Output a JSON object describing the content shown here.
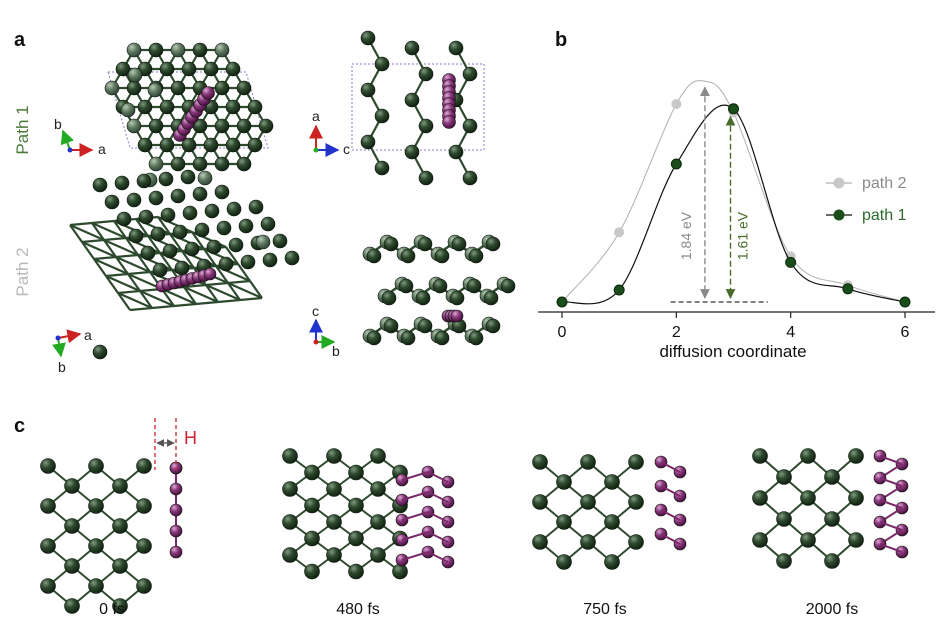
{
  "panels": {
    "a_label": "a",
    "b_label": "b",
    "c_label": "c"
  },
  "panel_a": {
    "row1_label": "Path 1",
    "row2_label": "Path 2",
    "axes": {
      "r1_left": [
        "b",
        "a"
      ],
      "r1_right": [
        "a",
        "c"
      ],
      "r2_left": [
        "a",
        "b"
      ],
      "r2_right": [
        "c",
        "b"
      ]
    }
  },
  "colors": {
    "atom_dark": "#1f3a1f",
    "atom_mid": "#3d5e3d",
    "atom_light": "#6b8a6b",
    "diffusing": "#7a2a6a",
    "path1": "#1a4d1a",
    "path2": "#bdbdbd",
    "barrier1": "#4a6b2a",
    "barrier2": "#8a8a8a",
    "h_marker": "#cc2233"
  },
  "chart_data": {
    "type": "line",
    "title": "",
    "xlabel": "diffusion coordinate",
    "ylabel": "",
    "xlim": [
      -0.3,
      6.5
    ],
    "ylim": [
      -0.1,
      2.1
    ],
    "xticks": [
      0,
      2,
      4,
      6
    ],
    "legend_position": "right",
    "series": [
      {
        "name": "path 2",
        "x": [
          0,
          1,
          2,
          3,
          4,
          5,
          6
        ],
        "values": [
          0.0,
          0.58,
          1.65,
          1.58,
          0.38,
          0.14,
          0.0
        ]
      },
      {
        "name": "path 1",
        "x": [
          0,
          1,
          2,
          3,
          4,
          5,
          6
        ],
        "values": [
          0.0,
          0.1,
          1.15,
          1.61,
          0.33,
          0.11,
          0.0
        ]
      }
    ],
    "annotations": [
      {
        "text": "1.84 eV",
        "x": 2.5,
        "value": 1.84
      },
      {
        "text": "1.61 eV",
        "x": 3.0,
        "value": 1.61
      }
    ]
  },
  "panel_c": {
    "h_label": "H",
    "times": [
      "0 fs",
      "480 fs",
      "750 fs",
      "2000 fs"
    ]
  }
}
